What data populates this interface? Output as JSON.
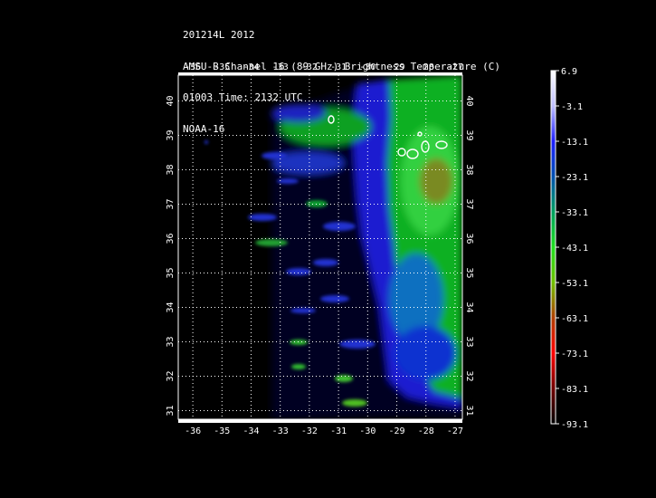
{
  "header": {
    "line1": "201214L 2012",
    "line2": "AMSU-B Channel 16 (89 GHz) Brightness Temperature (C)",
    "line3": "01003 Time: 2132 UTC",
    "line4": "NOAA-16"
  },
  "map": {
    "lon_range": [
      -36.5,
      -26.75
    ],
    "lat_range": [
      30.75,
      40.75
    ],
    "lon_ticks": [
      "-36",
      "-35",
      "-34",
      "-33",
      "-32",
      "-31",
      "-30",
      "-29",
      "-28",
      "-27"
    ],
    "lat_ticks": [
      "31",
      "32",
      "33",
      "34",
      "35",
      "36",
      "37",
      "38",
      "39",
      "40"
    ],
    "gridlines": true,
    "background_color": "#000000"
  },
  "colorbar": {
    "labels": [
      "6.9",
      "-3.1",
      "-13.1",
      "-23.1",
      "-33.1",
      "-43.1",
      "-53.1",
      "-63.1",
      "-73.1",
      "-83.1",
      "-93.1"
    ],
    "range": [
      -93.1,
      6.9
    ],
    "stops": [
      {
        "value": 6.9,
        "color": "#ffffff"
      },
      {
        "value": -3.1,
        "color": "#c0c0ff"
      },
      {
        "value": -13.1,
        "color": "#2020ff"
      },
      {
        "value": -23.1,
        "color": "#0050b0"
      },
      {
        "value": -33.1,
        "color": "#00a060"
      },
      {
        "value": -43.1,
        "color": "#20e020"
      },
      {
        "value": -53.1,
        "color": "#70c000"
      },
      {
        "value": -63.1,
        "color": "#b04000"
      },
      {
        "value": -73.1,
        "color": "#ff0000"
      },
      {
        "value": -83.1,
        "color": "#700000"
      },
      {
        "value": -93.1,
        "color": "#000000"
      }
    ]
  }
}
